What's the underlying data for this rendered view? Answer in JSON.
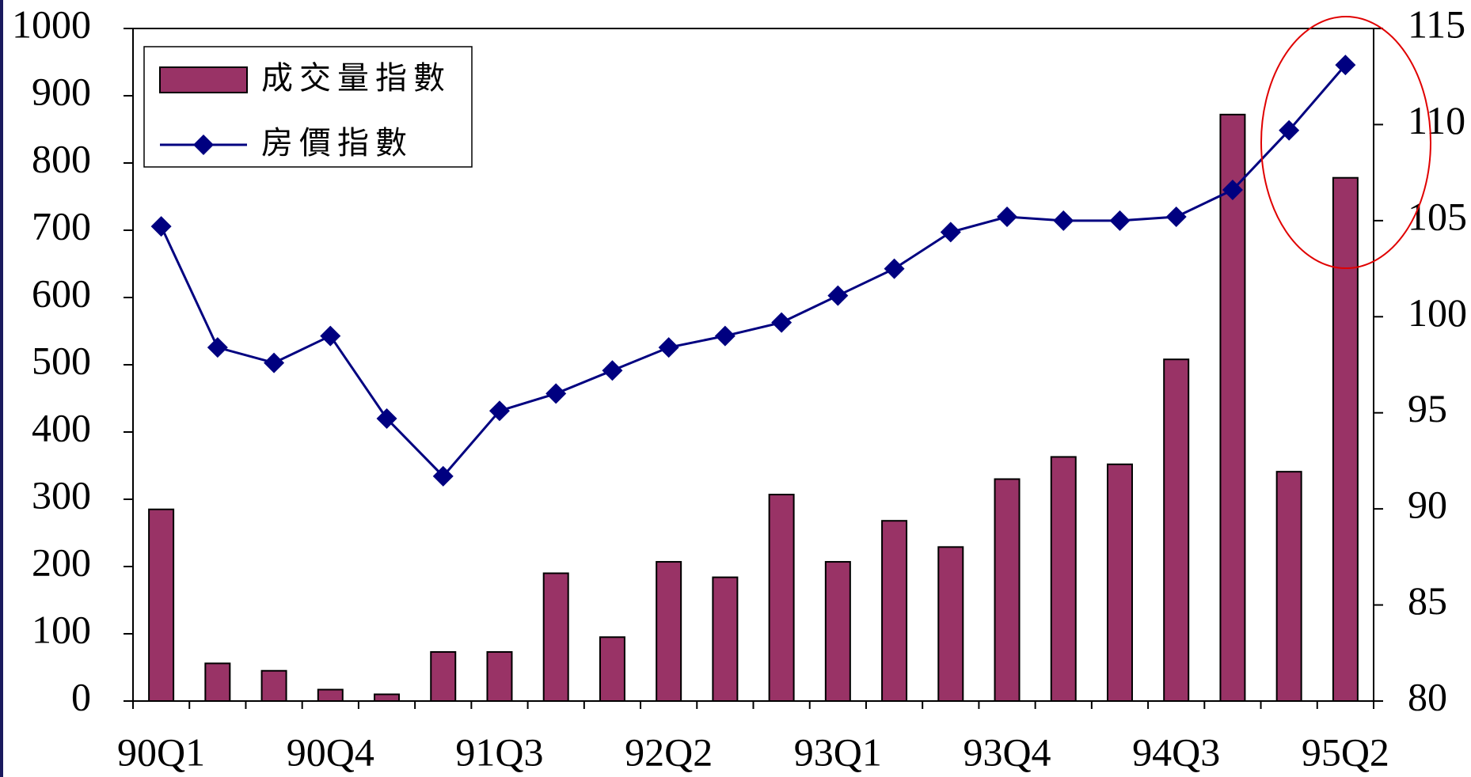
{
  "chart_data": {
    "type": "bar_line",
    "categories": [
      "90Q1",
      null,
      null,
      "90Q4",
      null,
      null,
      "91Q3",
      null,
      null,
      "92Q2",
      null,
      null,
      "93Q1",
      null,
      null,
      "93Q4",
      null,
      null,
      "94Q3",
      null,
      null,
      "95Q2"
    ],
    "series": [
      {
        "name": "成交量指數",
        "type": "bar",
        "color": "#993366",
        "axis": "y",
        "values": [
          285,
          56,
          45,
          17,
          10,
          73,
          73,
          190,
          95,
          207,
          184,
          307,
          207,
          268,
          229,
          330,
          363,
          352,
          508,
          872,
          341,
          778
        ]
      },
      {
        "name": "房價指數",
        "type": "line",
        "color": "#000080",
        "axis": "y2",
        "values": [
          104.7,
          98.4,
          97.6,
          99.0,
          94.7,
          91.7,
          95.1,
          96.0,
          97.2,
          98.4,
          99.0,
          99.7,
          101.1,
          102.5,
          104.4,
          105.2,
          105.0,
          105.0,
          105.2,
          106.6,
          109.7,
          113.1
        ]
      }
    ],
    "ylim": [
      0,
      1000
    ],
    "yticks": [
      0,
      100,
      200,
      300,
      400,
      500,
      600,
      700,
      800,
      900,
      1000
    ],
    "y2lim": [
      80,
      115
    ],
    "y2ticks": [
      80,
      85,
      90,
      95,
      100,
      105,
      110,
      115
    ],
    "grid": false,
    "legend": "upper left"
  }
}
